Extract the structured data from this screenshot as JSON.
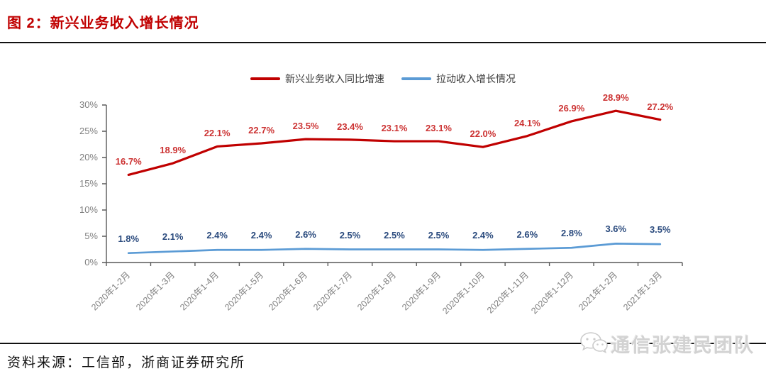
{
  "page": {
    "title": "图 2：新兴业务收入增长情况",
    "source": "资料来源：工信部，浙商证券研究所",
    "watermark": "通信张建民团队"
  },
  "colors": {
    "title": "#c00000",
    "axis": "#595959",
    "tick_text": "#808080",
    "rule": "#111111",
    "watermark": "#d2d2d2"
  },
  "chart_data": {
    "type": "line",
    "title": "新兴业务收入增长情况",
    "categories": [
      "2020年1-2月",
      "2020年1-3月",
      "2020年1-4月",
      "2020年1-5月",
      "2020年1-6月",
      "2020年1-7月",
      "2020年1-8月",
      "2020年1-9月",
      "2020年1-10月",
      "2020年1-11月",
      "2020年1-12月",
      "2021年1-2月",
      "2021年1-3月"
    ],
    "series": [
      {
        "name": "新兴业务收入同比增速",
        "color": "#c00000",
        "label_color": "#cc3333",
        "values": [
          16.7,
          18.9,
          22.1,
          22.7,
          23.5,
          23.4,
          23.1,
          23.1,
          22.0,
          24.1,
          26.9,
          28.9,
          27.2
        ],
        "labels": [
          "16.7%",
          "18.9%",
          "22.1%",
          "22.7%",
          "23.5%",
          "23.4%",
          "23.1%",
          "23.1%",
          "22.0%",
          "24.1%",
          "26.9%",
          "28.9%",
          "27.2%"
        ]
      },
      {
        "name": "拉动收入增长情况",
        "color": "#5b9bd5",
        "label_color": "#2b4b7e",
        "values": [
          1.8,
          2.1,
          2.4,
          2.4,
          2.6,
          2.5,
          2.5,
          2.5,
          2.4,
          2.6,
          2.8,
          3.6,
          3.5
        ],
        "labels": [
          "1.8%",
          "2.1%",
          "2.4%",
          "2.4%",
          "2.6%",
          "2.5%",
          "2.5%",
          "2.5%",
          "2.4%",
          "2.6%",
          "2.8%",
          "3.6%",
          "3.5%"
        ]
      }
    ],
    "y_ticks": [
      "0%",
      "5%",
      "10%",
      "15%",
      "20%",
      "25%",
      "30%"
    ],
    "ylim": [
      0,
      30
    ],
    "y_tick_step": 5,
    "grid": false,
    "legend_position": "top"
  }
}
